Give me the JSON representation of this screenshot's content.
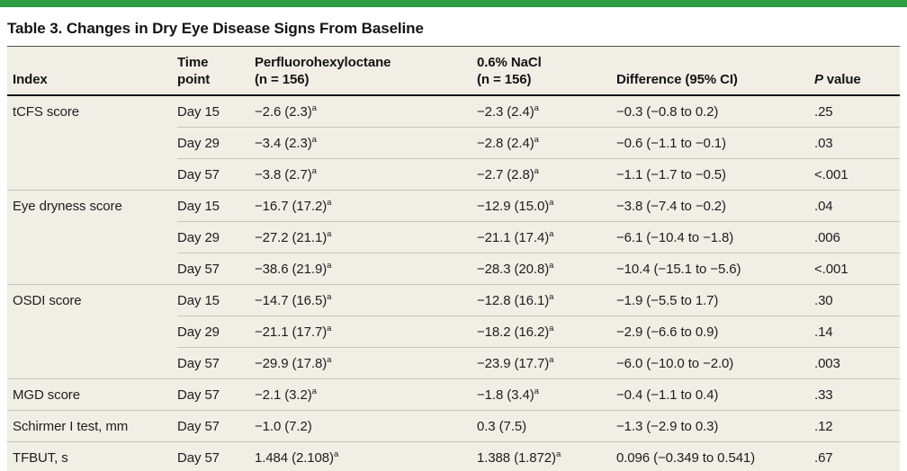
{
  "title": "Table 3. Changes in Dry Eye Disease Signs From Baseline",
  "colors": {
    "accent_bar_green": "#2e9c41",
    "table_background": "#f1efe5",
    "dark_rule": "#141414",
    "row_separator": "#c9c6b8",
    "text": "#1d1d1b"
  },
  "table": {
    "columns": [
      {
        "label": "Index"
      },
      {
        "line1": "Time",
        "line2": "point"
      },
      {
        "line1": "Perfluorohexyloctane",
        "line2": "(n = 156)"
      },
      {
        "line1": "0.6% NaCl",
        "line2": "(n = 156)"
      },
      {
        "label": "Difference (95% CI)"
      },
      {
        "italic": "P",
        "rest": "value"
      }
    ],
    "footnote_marker": "a",
    "groups": [
      {
        "index": "tCFS score",
        "rows": [
          {
            "time": "Day 15",
            "pfh": "−2.6 (2.3)",
            "pfh_sup": "a",
            "nacl": "−2.3 (2.4)",
            "nacl_sup": "a",
            "diff": "−0.3 (−0.8 to 0.2)",
            "p": ".25"
          },
          {
            "time": "Day 29",
            "pfh": "−3.4 (2.3)",
            "pfh_sup": "a",
            "nacl": "−2.8 (2.4)",
            "nacl_sup": "a",
            "diff": "−0.6 (−1.1 to −0.1)",
            "p": ".03"
          },
          {
            "time": "Day 57",
            "pfh": "−3.8 (2.7)",
            "pfh_sup": "a",
            "nacl": "−2.7 (2.8)",
            "nacl_sup": "a",
            "diff": "−1.1 (−1.7 to −0.5)",
            "p": "<.001"
          }
        ]
      },
      {
        "index": "Eye dryness score",
        "rows": [
          {
            "time": "Day 15",
            "pfh": "−16.7 (17.2)",
            "pfh_sup": "a",
            "nacl": "−12.9 (15.0)",
            "nacl_sup": "a",
            "diff": "−3.8 (−7.4 to −0.2)",
            "p": ".04"
          },
          {
            "time": "Day 29",
            "pfh": "−27.2 (21.1)",
            "pfh_sup": "a",
            "nacl": "−21.1 (17.4)",
            "nacl_sup": "a",
            "diff": "−6.1 (−10.4 to −1.8)",
            "p": ".006"
          },
          {
            "time": "Day 57",
            "pfh": "−38.6 (21.9)",
            "pfh_sup": "a",
            "nacl": "−28.3 (20.8)",
            "nacl_sup": "a",
            "diff": "−10.4 (−15.1 to −5.6)",
            "p": "<.001"
          }
        ]
      },
      {
        "index": "OSDI score",
        "rows": [
          {
            "time": "Day 15",
            "pfh": "−14.7 (16.5)",
            "pfh_sup": "a",
            "nacl": "−12.8 (16.1)",
            "nacl_sup": "a",
            "diff": "−1.9 (−5.5 to 1.7)",
            "p": ".30"
          },
          {
            "time": "Day 29",
            "pfh": "−21.1 (17.7)",
            "pfh_sup": "a",
            "nacl": "−18.2 (16.2)",
            "nacl_sup": "a",
            "diff": "−2.9 (−6.6 to 0.9)",
            "p": ".14"
          },
          {
            "time": "Day 57",
            "pfh": "−29.9 (17.8)",
            "pfh_sup": "a",
            "nacl": "−23.9 (17.7)",
            "nacl_sup": "a",
            "diff": "−6.0 (−10.0 to −2.0)",
            "p": ".003"
          }
        ]
      },
      {
        "index": "MGD score",
        "rows": [
          {
            "time": "Day 57",
            "pfh": "−2.1 (3.2)",
            "pfh_sup": "a",
            "nacl": "−1.8 (3.4)",
            "nacl_sup": "a",
            "diff": "−0.4 (−1.1 to 0.4)",
            "p": ".33"
          }
        ]
      },
      {
        "index": "Schirmer I test, mm",
        "rows": [
          {
            "time": "Day 57",
            "pfh": "−1.0 (7.2)",
            "pfh_sup": "",
            "nacl": "0.3 (7.5)",
            "nacl_sup": "",
            "diff": "−1.3 (−2.9 to 0.3)",
            "p": ".12"
          }
        ]
      },
      {
        "index": "TFBUT, s",
        "rows": [
          {
            "time": "Day 57",
            "pfh": "1.484 (2.108)",
            "pfh_sup": "a",
            "nacl": "1.388 (1.872)",
            "nacl_sup": "a",
            "diff": "0.096 (−0.349 to 0.541)",
            "p": ".67"
          }
        ]
      }
    ]
  }
}
